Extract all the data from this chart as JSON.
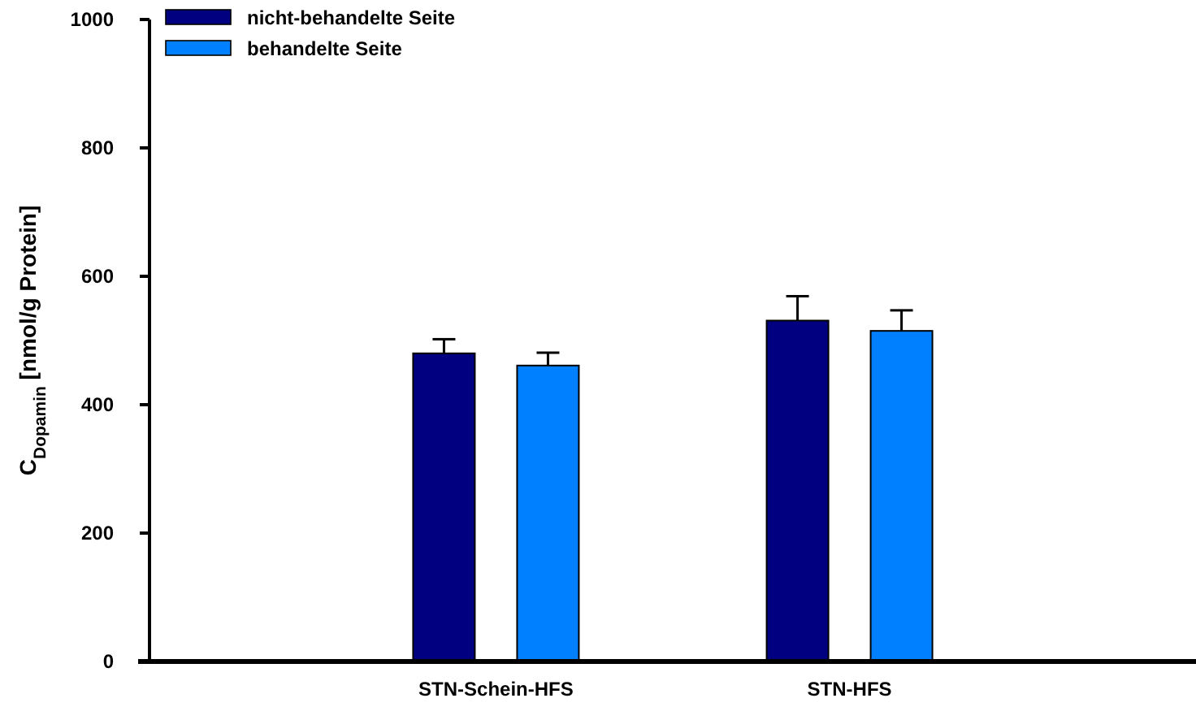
{
  "chart_data": {
    "type": "bar",
    "ylabel": "C$_{Dopamin}$ [nmol/g Protein]",
    "categories": [
      "STN-Schein-HFS",
      "STN-HFS"
    ],
    "series": [
      {
        "name": "nicht-behandelte Seite",
        "color": "#000080",
        "values": [
          480,
          531
        ],
        "errors": [
          [
            480,
            502
          ],
          [
            531,
            569
          ]
        ]
      },
      {
        "name": "behandelte Seite",
        "color": "#0080ff",
        "values": [
          461,
          515
        ],
        "errors": [
          [
            461,
            481
          ],
          [
            515,
            547
          ]
        ]
      }
    ],
    "ylim": [
      0,
      1000
    ],
    "yticks": [
      0,
      200,
      400,
      600,
      800,
      1000
    ],
    "grid": false,
    "legend": "top left"
  }
}
